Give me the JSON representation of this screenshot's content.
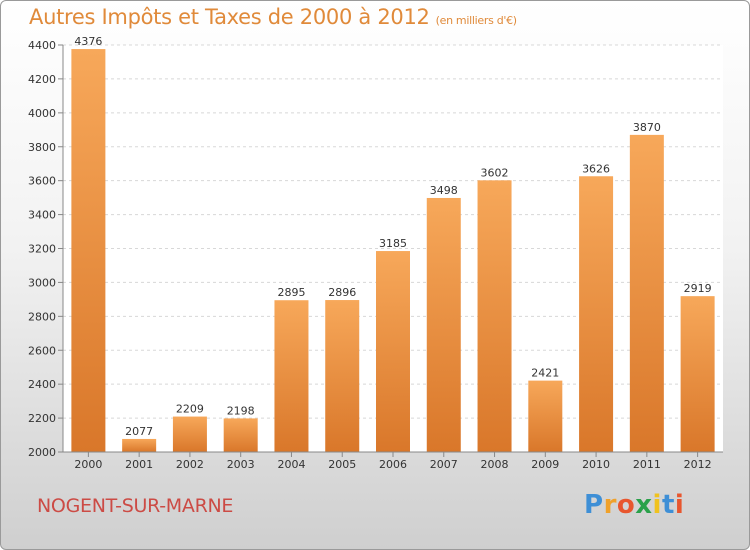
{
  "chart_data": {
    "type": "bar",
    "title": "Autres Impôts et Taxes de 2000 à 2012",
    "unit": "(en milliers d'€)",
    "categories": [
      "2000",
      "2001",
      "2002",
      "2003",
      "2004",
      "2005",
      "2006",
      "2007",
      "2008",
      "2009",
      "2010",
      "2011",
      "2012"
    ],
    "values": [
      4376,
      2077,
      2209,
      2198,
      2895,
      2896,
      3185,
      3498,
      3602,
      2421,
      3626,
      3870,
      2919
    ],
    "ylim": [
      2000,
      4400
    ],
    "yticks": [
      2000,
      2200,
      2400,
      2600,
      2800,
      3000,
      3200,
      3400,
      3600,
      3800,
      4000,
      4200,
      4400
    ],
    "grid": true,
    "colors": {
      "bar_top": "#f7a85a",
      "bar_bottom": "#d9772a",
      "title": "#e08a3a"
    }
  },
  "location": "NOGENT-SUR-MARNE",
  "logo": {
    "letters": [
      "P",
      "r",
      "o",
      "x",
      "i",
      "t",
      "i"
    ],
    "colors": [
      "#3e8fd6",
      "#f0a12a",
      "#e8562e",
      "#2aa14a",
      "#f0c21e",
      "#3e8fd6",
      "#e8562e"
    ]
  }
}
